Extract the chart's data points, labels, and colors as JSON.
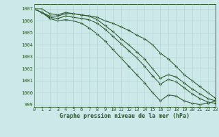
{
  "title": "Graphe pression niveau de la mer (hPa)",
  "background_color": "#cce8e8",
  "plot_bg_color": "#cce8e8",
  "grid_color_major": "#b0d4d4",
  "grid_color_minor": "#c0dede",
  "line_color": "#2d5a2d",
  "xlim": [
    0,
    23
  ],
  "ylim": [
    998.8,
    1007.4
  ],
  "yticks": [
    999,
    1000,
    1001,
    1002,
    1003,
    1004,
    1005,
    1006,
    1007
  ],
  "xticks": [
    0,
    1,
    2,
    3,
    4,
    5,
    6,
    7,
    8,
    9,
    10,
    11,
    12,
    13,
    14,
    15,
    16,
    17,
    18,
    19,
    20,
    21,
    22,
    23
  ],
  "series": [
    [
      1007.0,
      1007.0,
      1006.6,
      1006.5,
      1006.7,
      1006.6,
      1006.5,
      1006.4,
      1006.3,
      1006.0,
      1005.8,
      1005.5,
      1005.2,
      1004.8,
      1004.5,
      1004.0,
      1003.3,
      1002.8,
      1002.2,
      1001.5,
      1001.0,
      1000.5,
      1000.0,
      999.5
    ],
    [
      1007.0,
      1006.7,
      1006.4,
      1006.4,
      1006.6,
      1006.6,
      1006.5,
      1006.4,
      1006.1,
      1005.6,
      1005.1,
      1004.5,
      1004.0,
      1003.4,
      1002.8,
      1002.0,
      1001.2,
      1001.5,
      1001.3,
      1000.8,
      1000.3,
      999.9,
      999.5,
      999.3
    ],
    [
      1007.0,
      1006.7,
      1006.3,
      1006.2,
      1006.4,
      1006.3,
      1006.2,
      1006.1,
      1005.8,
      1005.3,
      1004.7,
      1004.1,
      1003.5,
      1002.9,
      1002.2,
      1001.4,
      1000.7,
      1001.1,
      1000.9,
      1000.4,
      999.9,
      999.5,
      999.2,
      999.1
    ],
    [
      1007.0,
      1006.7,
      1006.2,
      1006.0,
      1006.1,
      1006.0,
      1005.8,
      1005.4,
      1004.9,
      1004.3,
      1003.6,
      1002.9,
      1002.2,
      1001.5,
      1000.8,
      1000.0,
      999.3,
      999.8,
      999.7,
      999.3,
      999.1,
      999.0,
      999.1,
      999.3
    ]
  ]
}
